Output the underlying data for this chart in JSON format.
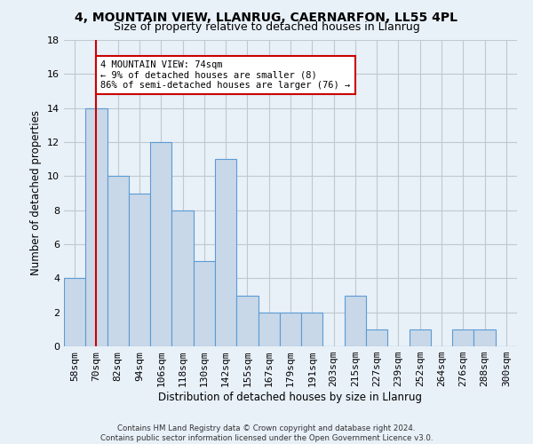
{
  "title1": "4, MOUNTAIN VIEW, LLANRUG, CAERNARFON, LL55 4PL",
  "title2": "Size of property relative to detached houses in Llanrug",
  "xlabel": "Distribution of detached houses by size in Llanrug",
  "ylabel": "Number of detached properties",
  "categories": [
    "58sqm",
    "70sqm",
    "82sqm",
    "94sqm",
    "106sqm",
    "118sqm",
    "130sqm",
    "142sqm",
    "155sqm",
    "167sqm",
    "179sqm",
    "191sqm",
    "203sqm",
    "215sqm",
    "227sqm",
    "239sqm",
    "252sqm",
    "264sqm",
    "276sqm",
    "288sqm",
    "300sqm"
  ],
  "values": [
    4,
    14,
    10,
    9,
    12,
    8,
    5,
    11,
    3,
    2,
    2,
    2,
    0,
    3,
    1,
    0,
    1,
    0,
    1,
    1,
    0
  ],
  "bar_color": "#c8d8e8",
  "bar_edge_color": "#5b9bd5",
  "grid_color": "#c0c8d0",
  "bg_color": "#e8f0f8",
  "vline_x": 1,
  "vline_color": "#cc0000",
  "annotation_text": "4 MOUNTAIN VIEW: 74sqm\n← 9% of detached houses are smaller (8)\n86% of semi-detached houses are larger (76) →",
  "annotation_box_color": "#ffffff",
  "annotation_box_edge": "#cc0000",
  "ylim": [
    0,
    18
  ],
  "footnote": "Contains HM Land Registry data © Crown copyright and database right 2024.\nContains public sector information licensed under the Open Government Licence v3.0."
}
